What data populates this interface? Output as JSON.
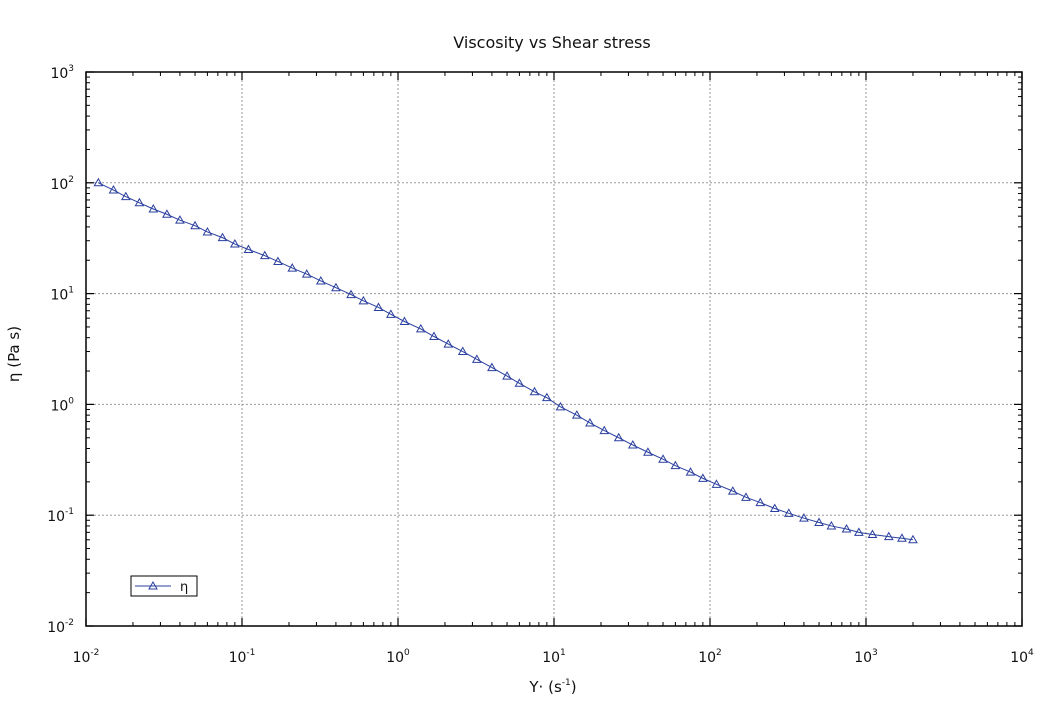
{
  "chart_data": {
    "type": "scatter",
    "title": "Viscosity vs Shear stress",
    "xlabel": {
      "main": "Y· (s",
      "exp": "-1",
      "tail": ")"
    },
    "ylabel": "η (Pa s)",
    "xscale": "log",
    "yscale": "log",
    "xlim": [
      0.01,
      10000
    ],
    "ylim": [
      0.01,
      1000
    ],
    "grid": true,
    "legend_position": "bottom-left",
    "xticks": [
      {
        "value": 0.01,
        "base": "10",
        "exp": "-2"
      },
      {
        "value": 0.1,
        "base": "10",
        "exp": "-1"
      },
      {
        "value": 1,
        "base": "10",
        "exp": "0"
      },
      {
        "value": 10,
        "base": "10",
        "exp": "1"
      },
      {
        "value": 100,
        "base": "10",
        "exp": "2"
      },
      {
        "value": 1000,
        "base": "10",
        "exp": "3"
      },
      {
        "value": 10000,
        "base": "10",
        "exp": "4"
      }
    ],
    "yticks": [
      {
        "value": 0.01,
        "base": "10",
        "exp": "-2"
      },
      {
        "value": 0.1,
        "base": "10",
        "exp": "-1"
      },
      {
        "value": 1,
        "base": "10",
        "exp": "0"
      },
      {
        "value": 10,
        "base": "10",
        "exp": "1"
      },
      {
        "value": 100,
        "base": "10",
        "exp": "2"
      },
      {
        "value": 1000,
        "base": "10",
        "exp": "3"
      }
    ],
    "series": [
      {
        "name": "η",
        "color": "#2a3f9e",
        "marker": "triangle-open",
        "x": [
          0.012,
          0.015,
          0.018,
          0.022,
          0.027,
          0.033,
          0.04,
          0.05,
          0.06,
          0.075,
          0.09,
          0.11,
          0.14,
          0.17,
          0.21,
          0.26,
          0.32,
          0.4,
          0.5,
          0.6,
          0.75,
          0.9,
          1.1,
          1.4,
          1.7,
          2.1,
          2.6,
          3.2,
          4.0,
          5.0,
          6.0,
          7.5,
          9.0,
          11,
          14,
          17,
          21,
          26,
          32,
          40,
          50,
          60,
          75,
          90,
          110,
          140,
          170,
          210,
          260,
          320,
          400,
          500,
          600,
          750,
          900,
          1100,
          1400,
          1700,
          2000
        ],
        "y": [
          100,
          86,
          75,
          66,
          58,
          52,
          46,
          41,
          36,
          32,
          28,
          25,
          22,
          19.5,
          17,
          15,
          13,
          11.3,
          9.8,
          8.6,
          7.5,
          6.5,
          5.6,
          4.8,
          4.1,
          3.5,
          3.0,
          2.55,
          2.15,
          1.8,
          1.55,
          1.3,
          1.15,
          0.95,
          0.8,
          0.68,
          0.58,
          0.5,
          0.43,
          0.37,
          0.32,
          0.28,
          0.245,
          0.215,
          0.19,
          0.165,
          0.145,
          0.13,
          0.115,
          0.104,
          0.094,
          0.086,
          0.08,
          0.075,
          0.07,
          0.067,
          0.064,
          0.062,
          0.06
        ]
      }
    ]
  }
}
